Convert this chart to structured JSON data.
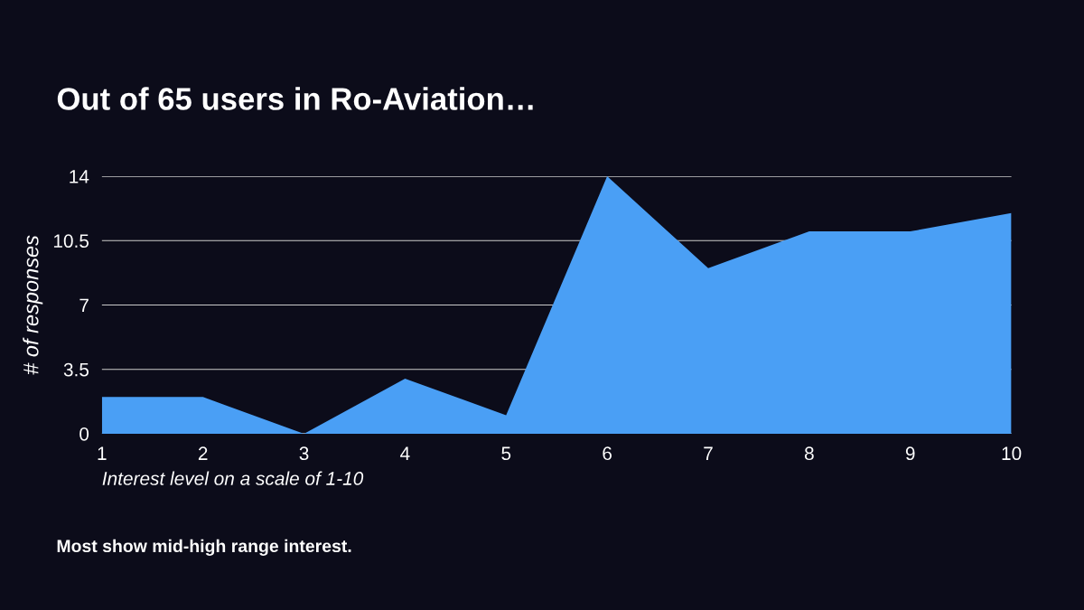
{
  "chart_data": {
    "type": "area",
    "title": "Out of 65 users in Ro-Aviation…",
    "xlabel": "Interest level on a scale of 1-10",
    "ylabel": "# of responses",
    "x": [
      1,
      2,
      3,
      4,
      5,
      6,
      7,
      8,
      9,
      10
    ],
    "series": [
      {
        "color": "#4a9ff5",
        "values": [
          2,
          2,
          0,
          3,
          1,
          14,
          9,
          11,
          11,
          12
        ]
      }
    ],
    "xlim": [
      1,
      10
    ],
    "xticks": [
      1,
      2,
      3,
      4,
      5,
      6,
      7,
      8,
      9,
      10
    ],
    "ylim": [
      0,
      14
    ],
    "yticks": [
      0,
      3.5,
      7,
      10.5,
      14
    ],
    "grid": "y",
    "legend": false,
    "annotations": [
      "Most show mid-high range interest."
    ]
  }
}
